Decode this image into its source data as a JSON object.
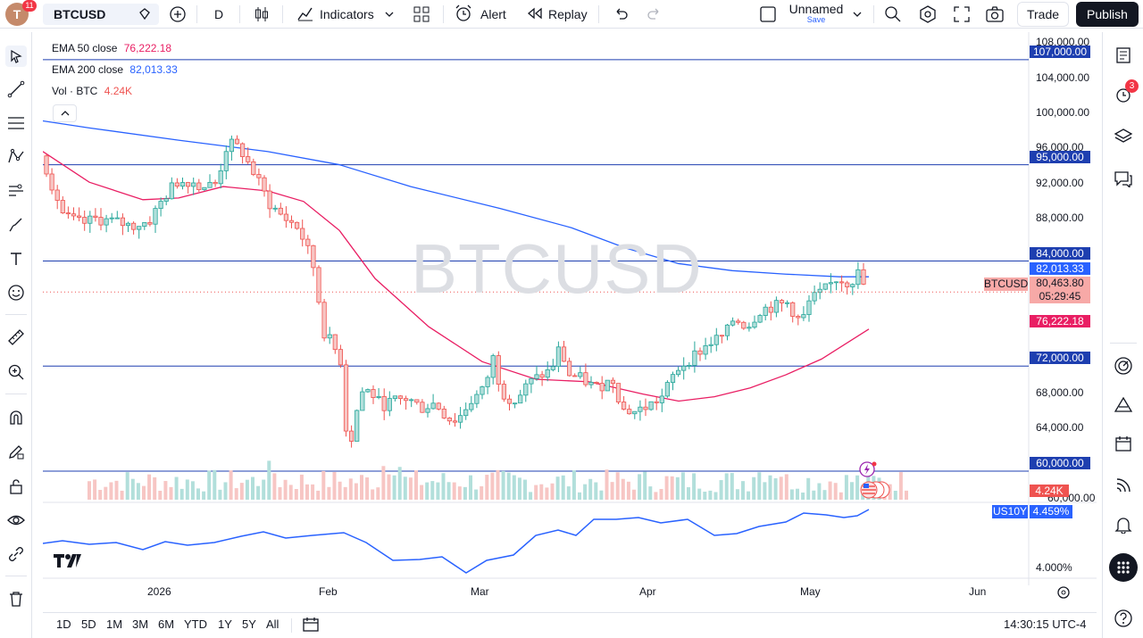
{
  "topbar": {
    "avatar_badge": "11",
    "symbol": "BTCUSD",
    "interval": "D",
    "indicators": "Indicators",
    "alert": "Alert",
    "replay": "Replay",
    "layout_name": "Unnamed",
    "layout_save": "Save",
    "trade": "Trade",
    "publish": "Publish"
  },
  "legend": {
    "ema50_label": "EMA 50 close",
    "ema50_value": "76,222.18",
    "ema200_label": "EMA 200 close",
    "ema200_value": "82,013.33",
    "vol_label": "Vol · BTC",
    "vol_value": "4.24K"
  },
  "watermark": "BTCUSD",
  "price_axis": [
    "108,000.00",
    "104,000.00",
    "100,000.00",
    "96,000.00",
    "92,000.00",
    "88,000.00",
    "68,000.00",
    "64,000.00",
    "60,000.00"
  ],
  "price_labels": {
    "h107": "107,000.00",
    "h95": "95,000.00",
    "h84": "84,000.00",
    "ema200": "82,013.33",
    "symbol_tag": "BTCUSD",
    "last": "80,463.80",
    "countdown": "05:29:45",
    "ema50": "76,222.18",
    "h72": "72,000.00",
    "h60": "60,000.00",
    "vol": "4.24K"
  },
  "lower_pane": {
    "symbol": "US10Y",
    "value": "4.459%",
    "axis": "4.000%"
  },
  "time_axis": [
    "2026",
    "Feb",
    "Mar",
    "Apr",
    "May",
    "Jun"
  ],
  "ranges": [
    "1D",
    "5D",
    "1M",
    "3M",
    "6M",
    "YTD",
    "1Y",
    "5Y",
    "All"
  ],
  "clock": "14:30:15 UTC-4",
  "alerts_badge": "3",
  "colors": {
    "up": "#26a69a",
    "down": "#ef5350",
    "ema50": "#e91e63",
    "ema200": "#2962ff",
    "hline": "#1e3fb0",
    "us10y": "#2962ff"
  },
  "chart_data": {
    "type": "candlestick",
    "symbol": "BTCUSD",
    "ylim": [
      56000,
      108500
    ],
    "horizontal_levels": [
      107000,
      95000,
      84000,
      72000,
      60000
    ],
    "ema50_last": 76222.18,
    "ema200_last": 82013.33,
    "last_price": 80463.8,
    "us10y_last": 4.459
  }
}
